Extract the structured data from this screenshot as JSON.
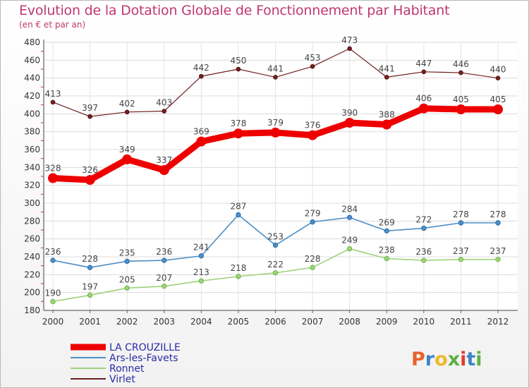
{
  "header": {
    "title": "Evolution de la Dotation Globale de Fonctionnement par Habitant",
    "subtitle": "(en € et par an)"
  },
  "logo": {
    "text": "Proxiti",
    "colors": [
      "#e8632b",
      "#3a86c8",
      "#f0b82a",
      "#5fb043",
      "#e03c31",
      "#3a86c8",
      "#5fb043"
    ]
  },
  "chart_data": {
    "type": "line",
    "x": [
      "2000",
      "2001",
      "2002",
      "2003",
      "2004",
      "2005",
      "2006",
      "2007",
      "2008",
      "2009",
      "2010",
      "2011",
      "2012"
    ],
    "ylim": [
      180,
      480
    ],
    "yticks": [
      180,
      200,
      220,
      240,
      260,
      280,
      300,
      320,
      340,
      360,
      380,
      400,
      420,
      440,
      460,
      480
    ],
    "grid": true,
    "legend_position": "bottom-left",
    "series": [
      {
        "name": "LA CROUZILLE",
        "color": "#ee0000",
        "values": [
          328,
          326,
          349,
          337,
          369,
          378,
          379,
          376,
          390,
          388,
          406,
          405,
          405
        ]
      },
      {
        "name": "Ars-les-Favets",
        "color": "#4d8fc6",
        "values": [
          236,
          228,
          235,
          236,
          241,
          287,
          253,
          279,
          284,
          269,
          272,
          278,
          278
        ]
      },
      {
        "name": "Ronnet",
        "color": "#9ed27a",
        "values": [
          190,
          197,
          205,
          207,
          213,
          218,
          222,
          228,
          249,
          238,
          236,
          237,
          237
        ]
      },
      {
        "name": "Virlet",
        "color": "#6e1f1f",
        "values": [
          413,
          397,
          402,
          403,
          442,
          450,
          441,
          453,
          473,
          441,
          447,
          446,
          440
        ]
      }
    ]
  }
}
